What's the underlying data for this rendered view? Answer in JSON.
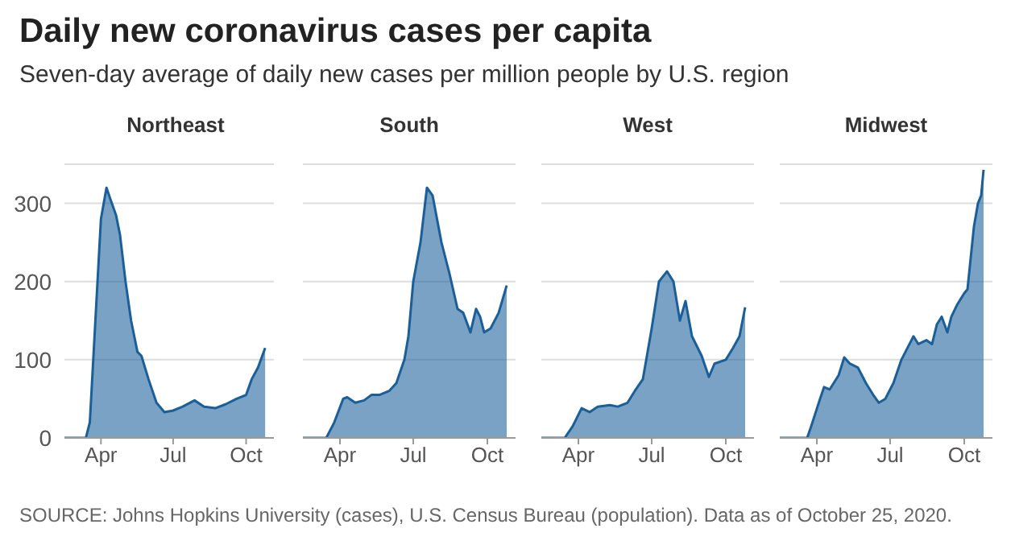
{
  "chart_data": [
    {
      "type": "area",
      "title": "Daily new coronavirus cases per capita",
      "subtitle": "Seven-day average of daily new cases per million people by U.S. region",
      "annotations": [
        "SOURCE: Johns Hopkins University (cases), U.S. Census Bureau (population). Data as of October 25, 2020."
      ],
      "x": [
        "2020-02-15",
        "2020-03-13",
        "2020-03-18",
        "2020-03-25",
        "2020-04-01",
        "2020-04-08",
        "2020-04-13",
        "2020-04-20",
        "2020-04-25",
        "2020-05-02",
        "2020-05-09",
        "2020-05-17",
        "2020-05-22",
        "2020-05-31",
        "2020-06-10",
        "2020-06-20",
        "2020-07-01",
        "2020-07-13",
        "2020-07-28",
        "2020-08-09",
        "2020-08-23",
        "2020-09-05",
        "2020-09-19",
        "2020-10-01",
        "2020-10-08",
        "2020-10-16",
        "2020-10-25"
      ],
      "series": [
        {
          "name": "Northeast",
          "color": "#1a5e9a",
          "values": [
            0,
            0,
            20,
            150,
            280,
            320,
            305,
            285,
            260,
            200,
            150,
            110,
            105,
            75,
            45,
            33,
            35,
            40,
            48,
            40,
            38,
            43,
            50,
            55,
            75,
            90,
            115
          ]
        }
      ],
      "xlim": [
        "2020-02-15",
        "2020-11-05"
      ],
      "xticks": [
        {
          "value": "2020-04-01",
          "label": "Apr"
        },
        {
          "value": "2020-07-01",
          "label": "Jul"
        },
        {
          "value": "2020-10-01",
          "label": "Oct"
        }
      ],
      "ylim": [
        0,
        350
      ],
      "yticks": [
        0,
        100,
        200,
        300
      ],
      "grid": "y"
    },
    {
      "type": "area",
      "x": [
        "2020-02-15",
        "2020-03-15",
        "2020-03-25",
        "2020-04-05",
        "2020-04-10",
        "2020-04-20",
        "2020-05-01",
        "2020-05-10",
        "2020-05-20",
        "2020-06-01",
        "2020-06-10",
        "2020-06-20",
        "2020-06-25",
        "2020-07-01",
        "2020-07-10",
        "2020-07-18",
        "2020-07-25",
        "2020-08-05",
        "2020-08-15",
        "2020-08-25",
        "2020-09-01",
        "2020-09-10",
        "2020-09-17",
        "2020-09-22",
        "2020-09-27",
        "2020-10-05",
        "2020-10-15",
        "2020-10-25"
      ],
      "series": [
        {
          "name": "South",
          "color": "#1a5e9a",
          "values": [
            0,
            0,
            20,
            50,
            52,
            45,
            48,
            55,
            55,
            60,
            70,
            100,
            130,
            200,
            250,
            320,
            310,
            250,
            210,
            165,
            160,
            135,
            165,
            155,
            135,
            140,
            160,
            195
          ]
        }
      ],
      "xlim": [
        "2020-02-15",
        "2020-11-05"
      ],
      "xticks": [
        {
          "value": "2020-04-01",
          "label": "Apr"
        },
        {
          "value": "2020-07-01",
          "label": "Jul"
        },
        {
          "value": "2020-10-01",
          "label": "Oct"
        }
      ],
      "ylim": [
        0,
        350
      ],
      "yticks": [
        0,
        100,
        200,
        300
      ],
      "grid": "y",
      "tick_labels": "x"
    },
    {
      "type": "area",
      "x": [
        "2020-02-15",
        "2020-03-15",
        "2020-03-25",
        "2020-04-05",
        "2020-04-15",
        "2020-04-25",
        "2020-05-10",
        "2020-05-20",
        "2020-06-01",
        "2020-06-10",
        "2020-06-20",
        "2020-07-01",
        "2020-07-10",
        "2020-07-20",
        "2020-07-28",
        "2020-08-05",
        "2020-08-12",
        "2020-08-20",
        "2020-09-01",
        "2020-09-10",
        "2020-09-17",
        "2020-10-01",
        "2020-10-10",
        "2020-10-18",
        "2020-10-25"
      ],
      "series": [
        {
          "name": "West",
          "color": "#1a5e9a",
          "values": [
            0,
            0,
            15,
            38,
            33,
            40,
            42,
            40,
            45,
            60,
            75,
            140,
            200,
            213,
            200,
            150,
            175,
            130,
            105,
            78,
            95,
            100,
            115,
            130,
            167
          ]
        }
      ],
      "xlim": [
        "2020-02-15",
        "2020-11-05"
      ],
      "xticks": [
        {
          "value": "2020-04-01",
          "label": "Apr"
        },
        {
          "value": "2020-07-01",
          "label": "Jul"
        },
        {
          "value": "2020-10-01",
          "label": "Oct"
        }
      ],
      "ylim": [
        0,
        350
      ],
      "yticks": [
        0,
        100,
        200,
        300
      ],
      "grid": "y",
      "tick_labels": "x"
    },
    {
      "type": "area",
      "x": [
        "2020-02-15",
        "2020-03-20",
        "2020-03-25",
        "2020-04-05",
        "2020-04-10",
        "2020-04-17",
        "2020-04-28",
        "2020-05-05",
        "2020-05-12",
        "2020-05-22",
        "2020-06-01",
        "2020-06-10",
        "2020-06-17",
        "2020-06-25",
        "2020-07-05",
        "2020-07-15",
        "2020-07-25",
        "2020-07-30",
        "2020-08-05",
        "2020-08-15",
        "2020-08-22",
        "2020-08-28",
        "2020-09-03",
        "2020-09-10",
        "2020-09-15",
        "2020-09-22",
        "2020-10-01",
        "2020-10-05",
        "2020-10-10",
        "2020-10-13",
        "2020-10-18",
        "2020-10-22",
        "2020-10-25"
      ],
      "series": [
        {
          "name": "Midwest",
          "color": "#1a5e9a",
          "values": [
            0,
            0,
            15,
            50,
            65,
            62,
            80,
            103,
            95,
            90,
            70,
            55,
            45,
            50,
            70,
            100,
            120,
            130,
            120,
            125,
            120,
            145,
            155,
            135,
            155,
            170,
            185,
            190,
            240,
            270,
            300,
            310,
            343
          ]
        }
      ],
      "xlim": [
        "2020-02-15",
        "2020-11-05"
      ],
      "xticks": [
        {
          "value": "2020-04-01",
          "label": "Apr"
        },
        {
          "value": "2020-07-01",
          "label": "Jul"
        },
        {
          "value": "2020-10-01",
          "label": "Oct"
        }
      ],
      "ylim": [
        0,
        350
      ],
      "yticks": [
        0,
        100,
        200,
        300
      ],
      "grid": "y",
      "tick_labels": "x"
    }
  ]
}
